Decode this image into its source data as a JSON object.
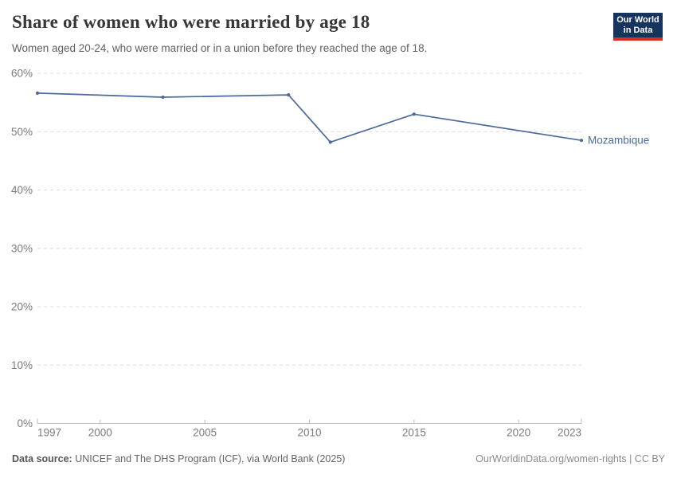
{
  "header": {
    "title": "Share of women who were married by age 18",
    "subtitle": "Women aged 20-24, who were married or in a union before they reached the age of 18.",
    "logo": {
      "line1": "Our World",
      "line2": "in Data",
      "bg_color": "#16345e",
      "accent_color": "#dc2d23"
    }
  },
  "chart_data": {
    "type": "line",
    "title": "Share of women who were married by age 18",
    "xlabel": "",
    "ylabel": "",
    "xlim": [
      1997,
      2023
    ],
    "ylim": [
      0,
      60
    ],
    "grid": "horizontal-dashed",
    "legend_position": "end-of-line-label",
    "x_ticks": [
      1997,
      2000,
      2005,
      2010,
      2015,
      2020,
      2023
    ],
    "x_tick_labels": [
      "1997",
      "2000",
      "2005",
      "2010",
      "2015",
      "2020",
      "2023"
    ],
    "y_ticks": [
      0,
      10,
      20,
      30,
      40,
      50,
      60
    ],
    "y_tick_labels": [
      "0%",
      "10%",
      "20%",
      "30%",
      "40%",
      "50%",
      "60%"
    ],
    "series": [
      {
        "name": "Mozambique",
        "color": "#4C6A9C",
        "points": [
          {
            "year": 1997,
            "value": 56.6
          },
          {
            "year": 2003,
            "value": 55.9
          },
          {
            "year": 2009,
            "value": 56.3
          },
          {
            "year": 2011,
            "value": 48.2
          },
          {
            "year": 2015,
            "value": 53.0
          },
          {
            "year": 2023,
            "value": 48.5
          }
        ]
      }
    ]
  },
  "footer": {
    "source_label": "Data source:",
    "source_text": " UNICEF and The DHS Program (ICF), via World Bank (2025)",
    "rights_text": "OurWorldinData.org/women-rights | CC BY"
  }
}
